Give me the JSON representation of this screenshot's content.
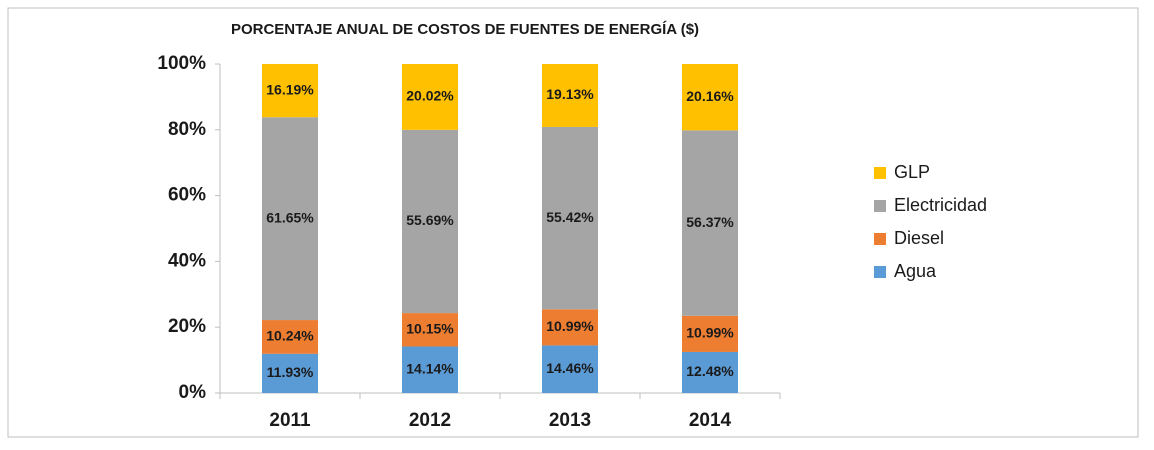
{
  "chart_data": {
    "type": "stacked_bar",
    "title": "PORCENTAJE ANUAL DE COSTOS DE FUENTES DE ENERGÍA ($)",
    "categories": [
      "2011",
      "2012",
      "2013",
      "2014"
    ],
    "series": [
      {
        "name": "Agua",
        "color": "#5b9bd5",
        "values": [
          11.93,
          14.14,
          14.46,
          12.48
        ],
        "value_labels": [
          "11.93%",
          "14.14%",
          "14.46%",
          "12.48%"
        ]
      },
      {
        "name": "Diesel",
        "color": "#ed7d31",
        "values": [
          10.24,
          10.15,
          10.99,
          10.99
        ],
        "value_labels": [
          "10.24%",
          "10.15%",
          "10.99%",
          "10.99%"
        ]
      },
      {
        "name": "Electricidad",
        "color": "#a5a5a5",
        "values": [
          61.65,
          55.69,
          55.42,
          56.37
        ],
        "value_labels": [
          "61.65%",
          "55.69%",
          "55.42%",
          "56.37%"
        ]
      },
      {
        "name": "GLP",
        "color": "#ffc000",
        "values": [
          16.19,
          20.02,
          19.13,
          20.16
        ],
        "value_labels": [
          "16.19%",
          "20.02%",
          "19.13%",
          "20.16%"
        ]
      }
    ],
    "ylim": [
      0,
      100
    ],
    "yticks": [
      {
        "value": 0,
        "label": "0%"
      },
      {
        "value": 20,
        "label": "20%"
      },
      {
        "value": 40,
        "label": "40%"
      },
      {
        "value": 60,
        "label": "60%"
      },
      {
        "value": 80,
        "label": "80%"
      },
      {
        "value": 100,
        "label": "100%"
      }
    ],
    "grid": false,
    "legend": "right"
  }
}
